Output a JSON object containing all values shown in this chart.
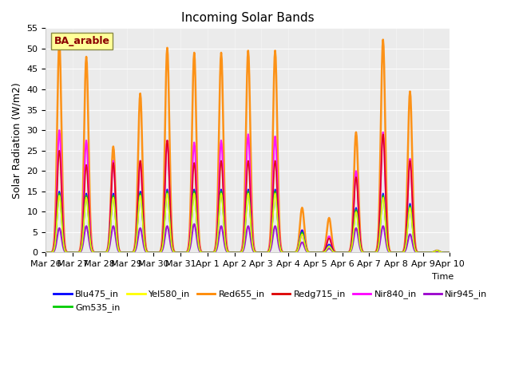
{
  "title": "Incoming Solar Bands",
  "xlabel": "Time",
  "ylabel": "Solar Radiation (W/m2)",
  "annotation": "BA_arable",
  "ylim": [
    0,
    55
  ],
  "series_order": [
    "Red655_in",
    "Nir840_in",
    "Redg715_in",
    "Nir945_in",
    "Blu475_in",
    "Gm535_in",
    "Yel580_in"
  ],
  "series": {
    "Blu475_in": {
      "color": "#0000ff",
      "lw": 1.2
    },
    "Gm535_in": {
      "color": "#00cc00",
      "lw": 1.2
    },
    "Yel580_in": {
      "color": "#ffff00",
      "lw": 1.2
    },
    "Red655_in": {
      "color": "#ff8800",
      "lw": 1.8
    },
    "Redg715_in": {
      "color": "#dd0000",
      "lw": 1.2
    },
    "Nir840_in": {
      "color": "#ff00ff",
      "lw": 1.5
    },
    "Nir945_in": {
      "color": "#9900cc",
      "lw": 1.5
    }
  },
  "day_labels": [
    "Mar 26",
    "Mar 27",
    "Mar 28",
    "Mar 29",
    "Mar 30",
    "Mar 31",
    "Apr 1",
    "Apr 2",
    "Apr 3",
    "Apr 4",
    "Apr 5",
    "Apr 6",
    "Apr 7",
    "Apr 8",
    "Apr 9",
    "Apr 10"
  ],
  "n_days": 15,
  "day_peaks": {
    "Red655_in": [
      51.5,
      48.0,
      26.0,
      39.0,
      50.2,
      49.0,
      49.0,
      49.5,
      49.5,
      11.0,
      8.5,
      29.5,
      52.2,
      39.5,
      0.5
    ],
    "Nir840_in": [
      30.0,
      27.5,
      22.5,
      22.5,
      27.5,
      27.0,
      27.5,
      29.0,
      28.5,
      5.5,
      4.0,
      20.0,
      29.5,
      23.0,
      0.5
    ],
    "Redg715_in": [
      25.0,
      21.5,
      22.0,
      22.5,
      27.5,
      22.0,
      22.5,
      22.5,
      22.5,
      4.5,
      3.5,
      18.5,
      29.0,
      22.5,
      0.5
    ],
    "Blu475_in": [
      15.0,
      14.5,
      14.5,
      15.0,
      15.5,
      15.5,
      15.5,
      15.5,
      15.5,
      5.5,
      2.0,
      11.0,
      14.5,
      12.0,
      0.5
    ],
    "Gm535_in": [
      14.5,
      14.0,
      14.0,
      14.5,
      15.0,
      15.0,
      15.0,
      15.0,
      15.0,
      5.0,
      1.5,
      10.5,
      14.0,
      11.5,
      0.5
    ],
    "Yel580_in": [
      14.0,
      13.5,
      13.5,
      14.0,
      14.5,
      14.5,
      14.5,
      14.5,
      14.5,
      4.5,
      1.5,
      10.0,
      13.5,
      11.0,
      0.5
    ],
    "Nir945_in": [
      6.0,
      6.5,
      6.5,
      6.0,
      6.5,
      7.0,
      6.5,
      6.5,
      6.5,
      2.5,
      1.0,
      6.0,
      6.5,
      4.5,
      0.3
    ]
  },
  "plot_bg": "#ebebeb",
  "legend_order": [
    "Blu475_in",
    "Gm535_in",
    "Yel580_in",
    "Red655_in",
    "Redg715_in",
    "Nir840_in",
    "Nir945_in"
  ]
}
